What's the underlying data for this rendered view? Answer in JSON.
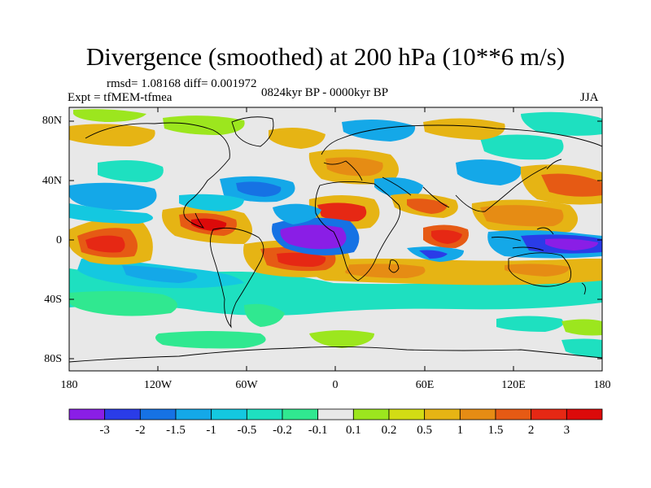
{
  "figure": {
    "title": "Divergence (smoothed) at 200 hPa (10**6 m/s)",
    "stats": "rmsd= 1.08168 diff= 0.001972",
    "experiment": "Expt = tfMEM-tfmea",
    "period": "0824kyr BP - 0000kyr BP",
    "season": "JJA"
  },
  "map": {
    "lat_ticks": [
      "80N",
      "40N",
      "0",
      "40S",
      "80S"
    ],
    "lon_ticks": [
      "180",
      "120W",
      "60W",
      "0",
      "60E",
      "120E",
      "180"
    ]
  },
  "colorbar": {
    "labels": [
      "-3",
      "-2",
      "-1.5",
      "-1",
      "-0.5",
      "-0.2",
      "-0.1",
      "0.1",
      "0.2",
      "0.5",
      "1",
      "1.5",
      "2",
      "3"
    ],
    "colors": [
      "#8a1ee6",
      "#2a3ce8",
      "#1672e4",
      "#14a8e8",
      "#14c8e0",
      "#1ee0c0",
      "#30e890",
      "#e8e8e8",
      "#9ce61e",
      "#d2dc14",
      "#e6b414",
      "#e68c14",
      "#e65a14",
      "#e62814",
      "#dc0a0a"
    ]
  }
}
